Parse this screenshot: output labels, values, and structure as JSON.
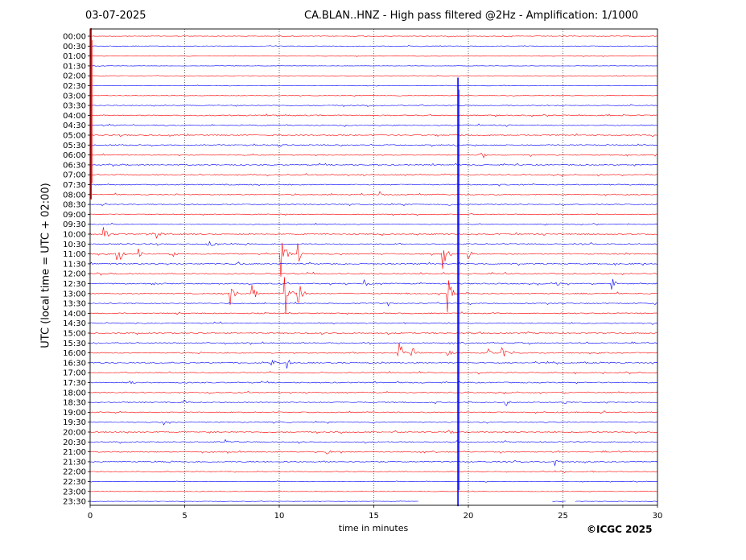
{
  "header": {
    "date": "03-07-2025",
    "title": "CA.BLAN..HNZ - High pass filtered @2Hz - Amplification: 1/1000"
  },
  "footer": {
    "copyright": "©ICGC 2025"
  },
  "chart_data": {
    "type": "line",
    "title": "CA.BLAN..HNZ - High pass filtered @2Hz - Amplification: 1/1000",
    "xlabel": "time in minutes",
    "ylabel": "UTC (local time = UTC + 02:00)",
    "xlim": [
      0,
      30
    ],
    "x_ticks": [
      "0",
      "5",
      "10",
      "15",
      "20",
      "25",
      "30"
    ],
    "x_gridlines": [
      5,
      10,
      15,
      20,
      25
    ],
    "grid": "vertical dotted",
    "trace_colors": [
      "#ff0000",
      "#0000ff"
    ],
    "rows": [
      "00:00",
      "00:30",
      "01:00",
      "01:30",
      "02:00",
      "02:30",
      "03:00",
      "03:30",
      "04:00",
      "04:30",
      "05:00",
      "05:30",
      "06:00",
      "06:30",
      "07:00",
      "07:30",
      "08:00",
      "08:30",
      "09:00",
      "09:30",
      "10:00",
      "10:30",
      "11:00",
      "11:30",
      "12:00",
      "12:30",
      "13:00",
      "13:30",
      "14:00",
      "14:30",
      "15:00",
      "15:30",
      "16:00",
      "16:30",
      "17:00",
      "17:30",
      "18:00",
      "18:30",
      "19:00",
      "19:30",
      "20:00",
      "20:30",
      "21:00",
      "21:30",
      "22:00",
      "22:30",
      "23:00",
      "23:30"
    ],
    "row_noise": [
      0.8,
      0.6,
      0.6,
      0.5,
      0.5,
      0.6,
      0.6,
      1.0,
      1.2,
      1.2,
      1.2,
      1.2,
      1.2,
      1.2,
      1.2,
      1.2,
      1.2,
      1.2,
      1.0,
      1.0,
      1.2,
      1.2,
      1.3,
      1.3,
      1.3,
      1.3,
      1.3,
      1.2,
      1.2,
      1.2,
      1.2,
      1.2,
      1.2,
      1.2,
      1.2,
      1.2,
      1.2,
      1.2,
      1.2,
      1.2,
      1.2,
      1.2,
      1.2,
      1.2,
      1.0,
      0.6,
      0.5,
      0.5
    ],
    "events": [
      {
        "row": 12,
        "minute": 20.6,
        "amp": 6
      },
      {
        "row": 16,
        "minute": 15.3,
        "amp": 5
      },
      {
        "row": 20,
        "minute": 0.7,
        "amp": 12
      },
      {
        "row": 20,
        "minute": 3.5,
        "amp": 6
      },
      {
        "row": 21,
        "minute": 6.3,
        "amp": 10
      },
      {
        "row": 22,
        "minute": 1.4,
        "amp": 25
      },
      {
        "row": 22,
        "minute": 2.6,
        "amp": 6
      },
      {
        "row": 22,
        "minute": 4.4,
        "amp": 5
      },
      {
        "row": 22,
        "minute": 10.1,
        "amp": 30
      },
      {
        "row": 22,
        "minute": 11.0,
        "amp": 14
      },
      {
        "row": 22,
        "minute": 18.6,
        "amp": 28
      },
      {
        "row": 22,
        "minute": 20.0,
        "amp": 8
      },
      {
        "row": 23,
        "minute": 7.7,
        "amp": 6
      },
      {
        "row": 25,
        "minute": 3.2,
        "amp": 5
      },
      {
        "row": 25,
        "minute": 14.5,
        "amp": 6
      },
      {
        "row": 25,
        "minute": 24.6,
        "amp": 7
      },
      {
        "row": 25,
        "minute": 27.5,
        "amp": 15
      },
      {
        "row": 26,
        "minute": 7.4,
        "amp": 18
      },
      {
        "row": 26,
        "minute": 8.5,
        "amp": 18
      },
      {
        "row": 26,
        "minute": 10.3,
        "amp": 40
      },
      {
        "row": 26,
        "minute": 11.0,
        "amp": 22
      },
      {
        "row": 26,
        "minute": 18.9,
        "amp": 30
      },
      {
        "row": 27,
        "minute": 15.7,
        "amp": 4
      },
      {
        "row": 32,
        "minute": 16.3,
        "amp": 22
      },
      {
        "row": 32,
        "minute": 17.0,
        "amp": 10
      },
      {
        "row": 32,
        "minute": 18.9,
        "amp": 6
      },
      {
        "row": 32,
        "minute": 21.0,
        "amp": 8
      },
      {
        "row": 32,
        "minute": 21.8,
        "amp": 7
      },
      {
        "row": 33,
        "minute": 9.6,
        "amp": 5
      },
      {
        "row": 33,
        "minute": 10.4,
        "amp": 7
      },
      {
        "row": 35,
        "minute": 2.1,
        "amp": 4
      },
      {
        "row": 37,
        "minute": 5.0,
        "amp": 5
      },
      {
        "row": 37,
        "minute": 22.0,
        "amp": 5
      },
      {
        "row": 37,
        "minute": 25.1,
        "amp": 4
      },
      {
        "row": 39,
        "minute": 3.9,
        "amp": 4
      },
      {
        "row": 40,
        "minute": 19.0,
        "amp": 4
      },
      {
        "row": 41,
        "minute": 7.1,
        "amp": 6
      },
      {
        "row": 42,
        "minute": 12.5,
        "amp": 6
      },
      {
        "row": 43,
        "minute": 24.6,
        "amp": 6
      }
    ],
    "spikes": [
      {
        "minute": 0.05,
        "from_row": 0,
        "to_row": 16,
        "color": "#ff0000"
      },
      {
        "minute": 19.45,
        "from_row": 5,
        "to_row": 47,
        "color": "#0000ff"
      }
    ],
    "final_row_gap": [
      17.4,
      24.4
    ],
    "final_row_dropouts": [
      [
        25.2,
        25.6
      ]
    ]
  }
}
